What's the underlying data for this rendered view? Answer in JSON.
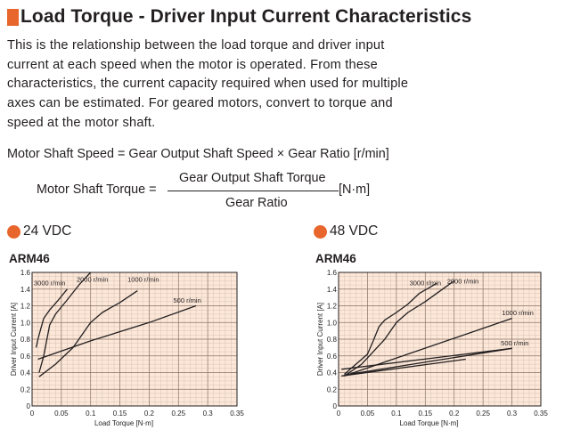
{
  "heading": "Load Torque - Driver Input Current Characteristics",
  "intro": "This is the relationship between the load torque and driver input current at each speed when the motor is operated. From these characteristics, the current capacity required when used for multiple axes can be estimated. For geared motors, convert to torque and speed at the motor shaft.",
  "formula1": {
    "text": "Motor Shaft Speed = Gear Output Shaft Speed × Gear Ratio [r/min]"
  },
  "formula2": {
    "lhs": "Motor Shaft Torque =",
    "numerator": "Gear Output Shaft Torque",
    "denominator": "Gear Ratio",
    "unit": "[N·m]"
  },
  "colors": {
    "accent": "#e8662b",
    "plot_background": "#fce7d8",
    "grid": "#c9b6a8",
    "line": "#231f20"
  },
  "section_24": {
    "title": "24 VDC",
    "model": "ARM46"
  },
  "section_48": {
    "title": "48 VDC",
    "model": "ARM46"
  },
  "chart_data": [
    {
      "type": "line",
      "title": "24 VDC",
      "xlabel": "Load Torque [N·m]",
      "ylabel": "Driver Input Current [A]",
      "xlim": [
        0,
        0.35
      ],
      "ylim": [
        0,
        1.6
      ],
      "xticks": [
        0,
        0.05,
        0.1,
        0.15,
        0.2,
        0.25,
        0.3,
        0.35
      ],
      "xtick_labels": [
        "0",
        "0.05",
        "0.1",
        "0.15",
        "0.2",
        "0.25",
        "0.3",
        "0.35"
      ],
      "yticks": [
        0,
        0.2,
        0.4,
        0.6,
        0.8,
        1.0,
        1.2,
        1.4,
        1.6
      ],
      "ytick_labels": [
        "0",
        "0.2",
        "0.4",
        "0.6",
        "0.8",
        "1.0",
        "1.2",
        "1.4",
        "1.6"
      ],
      "grid": true,
      "series": [
        {
          "name": "3000 r/min",
          "label_at": [
            0.03,
            1.48
          ],
          "x": [
            0.007,
            0.01,
            0.015,
            0.02,
            0.03,
            0.045,
            0.06
          ],
          "y": [
            0.7,
            0.8,
            0.93,
            1.05,
            1.15,
            1.27,
            1.4
          ]
        },
        {
          "name": "2000 r/min",
          "label_at": [
            0.103,
            1.52
          ],
          "x": [
            0.012,
            0.02,
            0.03,
            0.04,
            0.06,
            0.08,
            0.1
          ],
          "y": [
            0.4,
            0.6,
            0.97,
            1.1,
            1.27,
            1.45,
            1.6
          ]
        },
        {
          "name": "1000 r/min",
          "label_at": [
            0.19,
            1.52
          ],
          "x": [
            0.012,
            0.04,
            0.07,
            0.1,
            0.12,
            0.15,
            0.18
          ],
          "y": [
            0.35,
            0.5,
            0.7,
            1.0,
            1.12,
            1.24,
            1.38
          ]
        },
        {
          "name": "500 r/min",
          "label_at": [
            0.265,
            1.27
          ],
          "x": [
            0.01,
            0.1,
            0.2,
            0.28
          ],
          "y": [
            0.56,
            0.78,
            1.0,
            1.2
          ]
        }
      ]
    },
    {
      "type": "line",
      "title": "48 VDC",
      "xlabel": "Load Torque [N·m]",
      "ylabel": "Driver Input Current [A]",
      "xlim": [
        0,
        0.35
      ],
      "ylim": [
        0,
        1.6
      ],
      "xticks": [
        0,
        0.05,
        0.1,
        0.15,
        0.2,
        0.25,
        0.3,
        0.35
      ],
      "xtick_labels": [
        "0",
        "0.05",
        "0.1",
        "0.15",
        "0.2",
        "0.25",
        "0.3",
        "0.35"
      ],
      "yticks": [
        0,
        0.2,
        0.4,
        0.6,
        0.8,
        1.0,
        1.2,
        1.4,
        1.6
      ],
      "ytick_labels": [
        "0",
        "0.2",
        "0.4",
        "0.6",
        "0.8",
        "1.0",
        "1.2",
        "1.4",
        "1.6"
      ],
      "grid": true,
      "series": [
        {
          "name": "3000 r/min",
          "label_at": [
            0.15,
            1.48
          ],
          "x": [
            0.01,
            0.03,
            0.05,
            0.06,
            0.07,
            0.08,
            0.1,
            0.12,
            0.14,
            0.17
          ],
          "y": [
            0.38,
            0.5,
            0.62,
            0.78,
            0.95,
            1.03,
            1.12,
            1.22,
            1.35,
            1.47
          ]
        },
        {
          "name": "2000 r/min",
          "label_at": [
            0.215,
            1.5
          ],
          "x": [
            0.01,
            0.04,
            0.06,
            0.08,
            0.1,
            0.12,
            0.15,
            0.18,
            0.2
          ],
          "y": [
            0.36,
            0.5,
            0.65,
            0.8,
            1.0,
            1.12,
            1.25,
            1.4,
            1.5
          ]
        },
        {
          "name": "1000 r/min",
          "label_at": [
            0.31,
            1.12
          ],
          "x": [
            0.01,
            0.3
          ],
          "y": [
            0.36,
            1.05
          ]
        },
        {
          "name": "500 r/min",
          "label_at": [
            0.305,
            0.76
          ],
          "x": [
            0.01,
            0.3
          ],
          "y": [
            0.37,
            0.69
          ]
        },
        {
          "name": "",
          "x": [
            0.005,
            0.3
          ],
          "y": [
            0.44,
            0.69
          ]
        },
        {
          "name": "",
          "x": [
            0.005,
            0.22
          ],
          "y": [
            0.36,
            0.56
          ]
        }
      ]
    }
  ]
}
